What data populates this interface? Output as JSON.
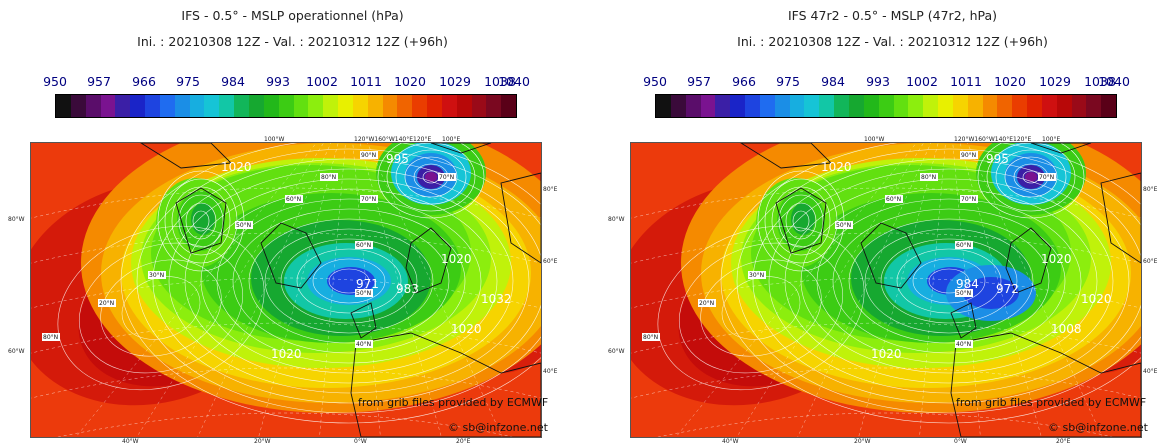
{
  "panels": [
    {
      "title_line1": "IFS - 0.5° - MSLP operationnel (hPa)",
      "title_line2": "Ini. : 20210308 12Z - Val. : 20210312 12Z (+96h)",
      "isobar_labels": [
        "1020",
        "1020",
        "1032",
        "995",
        "971",
        "1020",
        "983",
        "1020"
      ],
      "credit_line1": "from grib files provided by ECMWF",
      "credit_line2": "© sb@infzone.net"
    },
    {
      "title_line1": "IFS 47r2 - 0.5° - MSLP (47r2, hPa)",
      "title_line2": "Ini. : 20210308 12Z - Val. : 20210312 12Z (+96h)",
      "isobar_labels": [
        "1020",
        "1020",
        "1020",
        "995",
        "984",
        "1020",
        "972",
        "1008"
      ],
      "credit_line1": "from grib files provided by ECMWF",
      "credit_line2": "© sb@infzone.net"
    }
  ],
  "scale_labels": [
    "950",
    "957",
    "966",
    "975",
    "984",
    "993",
    "1002",
    "1011",
    "1020",
    "1029",
    "1038",
    "1040"
  ],
  "colorbar_colors": [
    "#111111",
    "#3a0a3a",
    "#5a0d6a",
    "#7a1390",
    "#3b1fa6",
    "#1a24c8",
    "#1e44e0",
    "#1f6cf0",
    "#1b8ee6",
    "#17aee0",
    "#16c4d6",
    "#12c7a6",
    "#12b65a",
    "#16a830",
    "#22b81a",
    "#3ccc14",
    "#62e010",
    "#8cee0e",
    "#c0f20a",
    "#e8f000",
    "#f6d400",
    "#f7b200",
    "#f58a00",
    "#f06400",
    "#ea3d00",
    "#e02200",
    "#cf1010",
    "#b80808",
    "#9a0a18",
    "#7a0820",
    "#5a0018"
  ],
  "lon_labels_top": [
    "100°W",
    "120°W160°W140°E120°E",
    "100°E"
  ],
  "lon_labels_bottom": [
    "40°W",
    "20°W",
    "0°W",
    "20°E"
  ],
  "lat_labels_left": [
    "80°W",
    "60°W"
  ],
  "lat_labels_right": [
    "80°E",
    "60°E",
    "40°E"
  ],
  "grid_labels": [
    "90°N",
    "80°N",
    "70°N",
    "60°N",
    "50°N",
    "40°N",
    "30°N",
    "20°N",
    "80°N",
    "70°N",
    "60°N",
    "50°N"
  ],
  "colors": {
    "background": "#ffffff",
    "scale_text": "#000080",
    "ocean_high": "#e0220a"
  }
}
